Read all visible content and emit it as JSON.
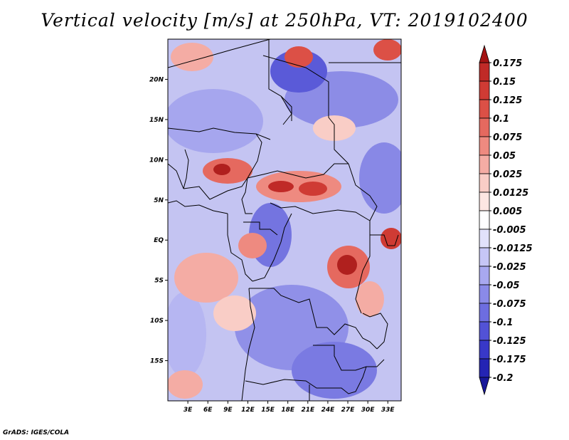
{
  "title": "Vertical velocity [m/s] at 250hPa, VT: 2019102400",
  "footer": "GrADS: IGES/COLA",
  "map": {
    "lon_range": [
      0,
      35
    ],
    "lat_range": [
      -20,
      25
    ],
    "lon_ticks": [
      {
        "value": 3,
        "label": "3E"
      },
      {
        "value": 6,
        "label": "6E"
      },
      {
        "value": 9,
        "label": "9E"
      },
      {
        "value": 12,
        "label": "12E"
      },
      {
        "value": 15,
        "label": "15E"
      },
      {
        "value": 18,
        "label": "18E"
      },
      {
        "value": 21,
        "label": "21E"
      },
      {
        "value": 24,
        "label": "24E"
      },
      {
        "value": 27,
        "label": "27E"
      },
      {
        "value": 30,
        "label": "30E"
      },
      {
        "value": 33,
        "label": "33E"
      }
    ],
    "lat_ticks": [
      {
        "value": 20,
        "label": "20N"
      },
      {
        "value": 15,
        "label": "15N"
      },
      {
        "value": 10,
        "label": "10N"
      },
      {
        "value": 5,
        "label": "5N"
      },
      {
        "value": 0,
        "label": "EQ"
      },
      {
        "value": -5,
        "label": "5S"
      },
      {
        "value": -10,
        "label": "10S"
      },
      {
        "value": -15,
        "label": "15S"
      }
    ]
  },
  "colorbar": {
    "levels": [
      {
        "label": "0.175",
        "color": "#b0201e"
      },
      {
        "label": "0.15",
        "color": "#c02a27"
      },
      {
        "label": "0.125",
        "color": "#cf3b34"
      },
      {
        "label": "0.1",
        "color": "#dc5046"
      },
      {
        "label": "0.075",
        "color": "#e5695f"
      },
      {
        "label": "0.05",
        "color": "#ee8a80"
      },
      {
        "label": "0.025",
        "color": "#f4aca4"
      },
      {
        "label": "0.0125",
        "color": "#f9cdc6"
      },
      {
        "label": "0.005",
        "color": "#fde6e2"
      },
      {
        "label": "-0.005",
        "color": "#ffffff"
      },
      {
        "label": "-0.0125",
        "color": "#e2e2fb"
      },
      {
        "label": "-0.025",
        "color": "#c6c6f6"
      },
      {
        "label": "-0.05",
        "color": "#a8a8f0"
      },
      {
        "label": "-0.075",
        "color": "#8a8ae8"
      },
      {
        "label": "-0.1",
        "color": "#6d6de0"
      },
      {
        "label": "-0.125",
        "color": "#5252d6"
      },
      {
        "label": "-0.175",
        "color": "#3838c8"
      },
      {
        "label": "-0.2",
        "color": "#2424b4"
      }
    ],
    "top_color": "#a41313",
    "bottom_color": "#18189a"
  }
}
